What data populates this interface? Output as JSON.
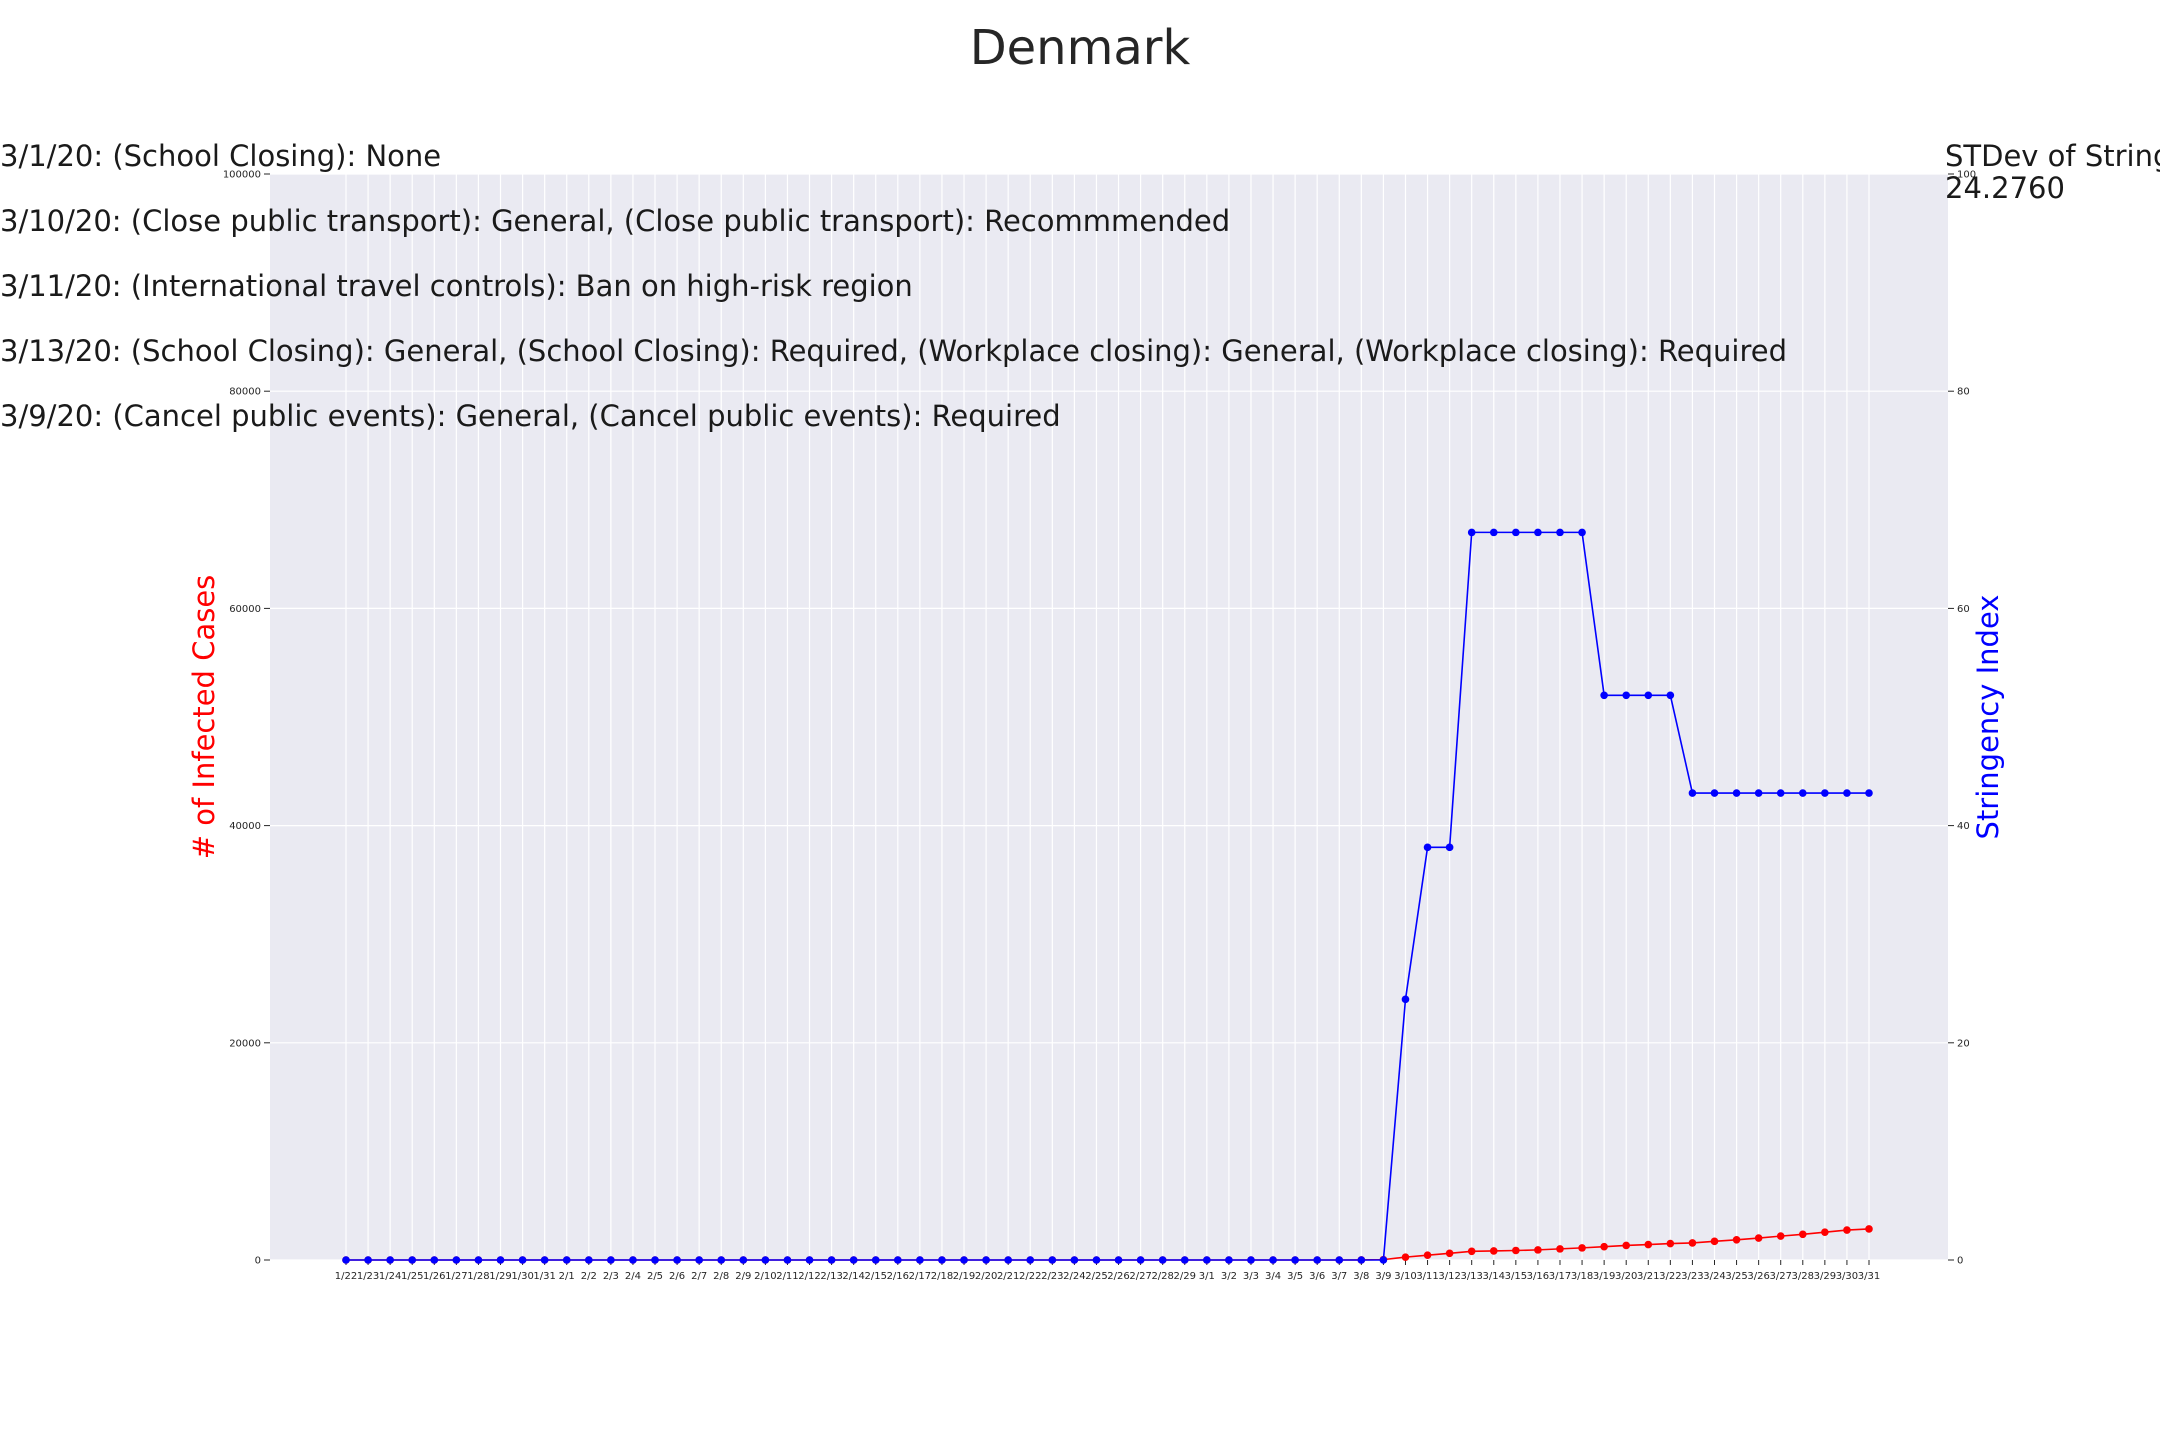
{
  "chart_data": {
    "type": "line",
    "title": "Denmark",
    "categories": [
      "1/22",
      "1/23",
      "1/24",
      "1/25",
      "1/26",
      "1/27",
      "1/28",
      "1/29",
      "1/30",
      "1/31",
      "2/1",
      "2/2",
      "2/3",
      "2/4",
      "2/5",
      "2/6",
      "2/7",
      "2/8",
      "2/9",
      "2/10",
      "2/11",
      "2/12",
      "2/13",
      "2/14",
      "2/15",
      "2/16",
      "2/17",
      "2/18",
      "2/19",
      "2/20",
      "2/21",
      "2/22",
      "2/23",
      "2/24",
      "2/25",
      "2/26",
      "2/27",
      "2/28",
      "2/29",
      "3/1",
      "3/2",
      "3/3",
      "3/4",
      "3/5",
      "3/6",
      "3/7",
      "3/8",
      "3/9",
      "3/10",
      "3/11",
      "3/12",
      "3/13",
      "3/14",
      "3/15",
      "3/16",
      "3/17",
      "3/18",
      "3/19",
      "3/20",
      "3/21",
      "3/22",
      "3/23",
      "3/24",
      "3/25",
      "3/26",
      "3/27",
      "3/28",
      "3/29",
      "3/30",
      "3/31"
    ],
    "y_left": {
      "label": "# of Infected Cases",
      "range": [
        0,
        100000
      ],
      "ticks": [
        0,
        20000,
        40000,
        60000,
        80000,
        100000
      ]
    },
    "y_right": {
      "label": "Stringency Index",
      "range": [
        0,
        100
      ],
      "ticks": [
        0,
        20,
        40,
        60,
        80,
        100
      ]
    },
    "series": [
      {
        "name": "# of Infected Cases",
        "axis": "left",
        "color": "#ff0000",
        "values": [
          0,
          0,
          0,
          0,
          0,
          0,
          0,
          0,
          0,
          0,
          0,
          0,
          0,
          0,
          0,
          0,
          0,
          0,
          0,
          0,
          0,
          0,
          0,
          0,
          0,
          0,
          0,
          0,
          0,
          0,
          0,
          0,
          0,
          0,
          0,
          0,
          0,
          0,
          0,
          0,
          0,
          0,
          0,
          0,
          0,
          0,
          3,
          35,
          264,
          444,
          617,
          804,
          836,
          875,
          932,
          1024,
          1116,
          1225,
          1337,
          1420,
          1514,
          1572,
          1718,
          1862,
          2023,
          2200,
          2366,
          2564,
          2755,
          2860
        ]
      },
      {
        "name": "Stringency Index",
        "axis": "right",
        "color": "#0000ff",
        "values": [
          0,
          0,
          0,
          0,
          0,
          0,
          0,
          0,
          0,
          0,
          0,
          0,
          0,
          0,
          0,
          0,
          0,
          0,
          0,
          0,
          0,
          0,
          0,
          0,
          0,
          0,
          0,
          0,
          0,
          0,
          0,
          0,
          0,
          0,
          0,
          0,
          0,
          0,
          0,
          0,
          0,
          0,
          0,
          0,
          0,
          0,
          0,
          0,
          24,
          38,
          38,
          67,
          67,
          67,
          67,
          67,
          67,
          52,
          52,
          52,
          52,
          43,
          43,
          43,
          43,
          43,
          43,
          43,
          43,
          43
        ]
      }
    ],
    "annotations": [
      "3/1/20: (School Closing): None",
      "3/10/20: (Close public transport): General, (Close public transport): Recommmended",
      "3/11/20: (International travel controls): Ban on high-risk region",
      "3/13/20: (School Closing): General, (School Closing): Required, (Workplace closing): General, (Workplace closing): Required",
      "3/9/20: (Cancel public events): General, (Cancel public events): Required"
    ],
    "stdev_label": "STDev of Stringency Index:",
    "stdev_value": "24.2760",
    "grid": true,
    "background": "#eaeaf2"
  }
}
